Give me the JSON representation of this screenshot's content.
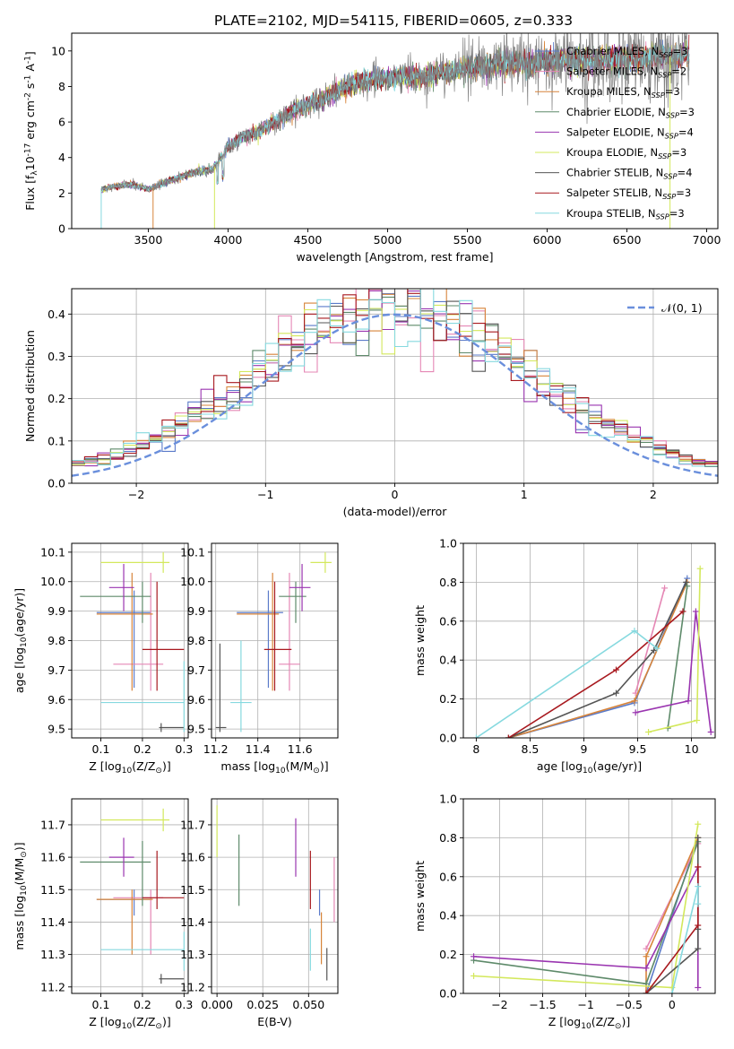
{
  "figure_title": "PLATE=2102, MJD=54115, FIBERID=0605, z=0.333",
  "colors": {
    "chabrier_miles": "#5b7bc9",
    "salpeter_miles": "#e587b5",
    "kroupa_miles": "#d7843a",
    "chabrier_elodie": "#5e8a6a",
    "salpeter_elodie": "#9a35b0",
    "kroupa_elodie": "#d3e85c",
    "chabrier_stelib": "#555555",
    "salpeter_stelib": "#a8191f",
    "kroupa_stelib": "#86d9df",
    "normal": "#6a8fdc",
    "data": "#808080"
  },
  "chart_data": [
    {
      "id": "spectrum",
      "type": "line",
      "xlabel": "wavelength [Angstrom, rest frame]",
      "ylabel": "Flux [f$_\\lambda$10$^{-17}$ erg cm$^{-2}$ s$^{-1}$ A$^{-1}$]",
      "xlim": [
        3020,
        7070
      ],
      "ylim": [
        0,
        11
      ],
      "xticks": [
        3500,
        4000,
        4500,
        5000,
        5500,
        6000,
        6500,
        7000
      ],
      "yticks": [
        0,
        2,
        4,
        6,
        8,
        10
      ],
      "legend_position": "top-right",
      "continuum": {
        "x": [
          3200,
          3300,
          3400,
          3500,
          3600,
          3700,
          3800,
          3900,
          4000,
          4100,
          4200,
          4300,
          4400,
          4500,
          4600,
          4700,
          4800,
          4900,
          5000,
          5100,
          5200,
          5300,
          5400,
          5500,
          5600,
          5700,
          5800,
          5900,
          6000,
          6100,
          6200,
          6300,
          6400,
          6500,
          6600,
          6700,
          6800,
          6900
        ],
        "y": [
          2.2,
          2.4,
          2.5,
          2.2,
          2.6,
          2.9,
          3.2,
          3.3,
          4.6,
          5.2,
          5.5,
          6.0,
          6.6,
          7.0,
          7.3,
          7.8,
          8.2,
          8.4,
          8.4,
          8.6,
          8.5,
          8.7,
          8.9,
          9.1,
          9.1,
          9.3,
          9.3,
          9.2,
          9.4,
          9.5,
          9.5,
          9.4,
          9.6,
          9.6,
          9.6,
          9.7,
          9.7,
          9.8
        ]
      },
      "series": [
        {
          "name": "Chabrier MILES, N$_{SSP}$=3",
          "color_key": "chabrier_miles"
        },
        {
          "name": "Salpeter MILES, N$_{SSP}$=2",
          "color_key": "salpeter_miles"
        },
        {
          "name": "Kroupa MILES, N$_{SSP}$=3",
          "color_key": "kroupa_miles"
        },
        {
          "name": "Chabrier ELODIE, N$_{SSP}$=3",
          "color_key": "chabrier_elodie"
        },
        {
          "name": "Salpeter ELODIE, N$_{SSP}$=4",
          "color_key": "salpeter_elodie"
        },
        {
          "name": "Kroupa ELODIE, N$_{SSP}$=3",
          "color_key": "kroupa_elodie"
        },
        {
          "name": "Chabrier STELIB, N$_{SSP}$=4",
          "color_key": "chabrier_stelib"
        },
        {
          "name": "Salpeter STELIB, N$_{SSP}$=3",
          "color_key": "salpeter_stelib"
        },
        {
          "name": "Kroupa STELIB, N$_{SSP}$=3",
          "color_key": "kroupa_stelib"
        }
      ]
    },
    {
      "id": "residuals",
      "type": "line",
      "xlabel": "(data-model)/error",
      "ylabel": "Normed distribution",
      "xlim": [
        -2.5,
        2.5
      ],
      "ylim": [
        0,
        0.46
      ],
      "xticks": [
        -2,
        -1,
        0,
        1,
        2
      ],
      "yticks": [
        0.0,
        0.1,
        0.2,
        0.3,
        0.4
      ],
      "grid": true,
      "legend_label": "$\\mathcal{N}(0, 1)$",
      "legend_position": "top-right",
      "bins": {
        "start": -2.5,
        "width": 0.1,
        "count": 50
      },
      "curve": "normal(0,1)"
    },
    {
      "id": "age_vs_Z",
      "type": "scatter",
      "xlabel": "Z [log$_{10}$(Z/Z$_\\odot$)]",
      "ylabel": "age  [log$_{10}$(age/yr)]",
      "xlim": [
        0.03,
        0.31
      ],
      "ylim": [
        9.47,
        10.13
      ],
      "xticks": [
        0.1,
        0.2,
        0.3
      ],
      "yticks": [
        9.5,
        9.6,
        9.7,
        9.8,
        9.9,
        10.0,
        10.1
      ],
      "grid": true,
      "points": [
        {
          "color_key": "chabrier_miles",
          "x": 0.18,
          "y": 9.895,
          "xerr": [
            0.09,
            0.22
          ],
          "yerr": [
            9.64,
            9.97
          ]
        },
        {
          "color_key": "salpeter_miles",
          "x": 0.22,
          "y": 9.72,
          "xerr": [
            0.13,
            0.25
          ],
          "yerr": [
            9.63,
            10.03
          ]
        },
        {
          "color_key": "kroupa_miles",
          "x": 0.175,
          "y": 9.89,
          "xerr": [
            0.09,
            0.225
          ],
          "yerr": [
            9.63,
            10.03
          ]
        },
        {
          "color_key": "chabrier_elodie",
          "x": 0.2,
          "y": 9.95,
          "xerr": [
            0.05,
            0.22
          ],
          "yerr": [
            9.86,
            10.0
          ]
        },
        {
          "color_key": "salpeter_elodie",
          "x": 0.155,
          "y": 9.98,
          "xerr": [
            0.12,
            0.18
          ],
          "yerr": [
            9.9,
            10.06
          ]
        },
        {
          "color_key": "kroupa_elodie",
          "x": 0.25,
          "y": 10.065,
          "xerr": [
            0.1,
            0.265
          ],
          "yerr": [
            10.03,
            10.1
          ]
        },
        {
          "color_key": "chabrier_stelib",
          "x": 0.245,
          "y": 9.505,
          "xerr": [
            0.24,
            0.3
          ],
          "yerr": [
            9.49,
            9.52
          ]
        },
        {
          "color_key": "salpeter_stelib",
          "x": 0.235,
          "y": 9.77,
          "xerr": [
            0.2,
            0.3
          ],
          "yerr": [
            9.63,
            10.0
          ]
        },
        {
          "color_key": "kroupa_stelib",
          "x": 0.3,
          "y": 9.59,
          "xerr": [
            0.1,
            0.3
          ],
          "yerr": [
            9.49,
            9.73
          ]
        }
      ]
    },
    {
      "id": "age_vs_mass",
      "type": "scatter",
      "xlabel": "mass [log$_{10}$(M/M$_\\odot$)]",
      "ylabel": "",
      "xlim": [
        11.18,
        11.78
      ],
      "ylim": [
        9.47,
        10.13
      ],
      "xticks": [
        11.2,
        11.4,
        11.6
      ],
      "yticks": [
        9.5,
        9.6,
        9.7,
        9.8,
        9.9,
        10.0,
        10.1
      ],
      "grid": true,
      "points": [
        {
          "color_key": "chabrier_miles",
          "x": 11.45,
          "y": 9.895,
          "xerr": [
            11.3,
            11.52
          ],
          "yerr": [
            9.64,
            9.97
          ]
        },
        {
          "color_key": "salpeter_miles",
          "x": 11.55,
          "y": 9.72,
          "xerr": [
            11.5,
            11.6
          ],
          "yerr": [
            9.63,
            10.03
          ]
        },
        {
          "color_key": "kroupa_miles",
          "x": 11.47,
          "y": 9.89,
          "xerr": [
            11.3,
            11.5
          ],
          "yerr": [
            9.63,
            10.03
          ]
        },
        {
          "color_key": "chabrier_elodie",
          "x": 11.58,
          "y": 9.95,
          "xerr": [
            11.5,
            11.63
          ],
          "yerr": [
            9.86,
            10.0
          ]
        },
        {
          "color_key": "salpeter_elodie",
          "x": 11.61,
          "y": 9.98,
          "xerr": [
            11.55,
            11.65
          ],
          "yerr": [
            9.9,
            10.06
          ]
        },
        {
          "color_key": "kroupa_elodie",
          "x": 11.72,
          "y": 10.065,
          "xerr": [
            11.65,
            11.75
          ],
          "yerr": [
            10.03,
            10.1
          ]
        },
        {
          "color_key": "chabrier_stelib",
          "x": 11.22,
          "y": 9.505,
          "xerr": [
            11.2,
            11.25
          ],
          "yerr": [
            9.49,
            9.79
          ]
        },
        {
          "color_key": "salpeter_stelib",
          "x": 11.48,
          "y": 9.77,
          "xerr": [
            11.43,
            11.56
          ],
          "yerr": [
            9.63,
            10.0
          ]
        },
        {
          "color_key": "kroupa_stelib",
          "x": 11.32,
          "y": 9.59,
          "xerr": [
            11.27,
            11.37
          ],
          "yerr": [
            9.49,
            9.8
          ]
        }
      ]
    },
    {
      "id": "weight_vs_age",
      "type": "line",
      "xlabel": "age  [log$_{10}$(age/yr)]",
      "ylabel": "mass weight",
      "xlim": [
        7.88,
        10.22
      ],
      "ylim": [
        0,
        1
      ],
      "xticks": [
        8.0,
        8.5,
        9.0,
        9.5,
        10.0
      ],
      "yticks": [
        0.0,
        0.2,
        0.4,
        0.6,
        0.8,
        1.0
      ],
      "grid": true,
      "series": [
        {
          "color_key": "chabrier_miles",
          "x": [
            8.3,
            9.47,
            9.96
          ],
          "y": [
            0.0,
            0.18,
            0.82
          ]
        },
        {
          "color_key": "salpeter_miles",
          "x": [
            9.48,
            9.75
          ],
          "y": [
            0.23,
            0.77
          ]
        },
        {
          "color_key": "kroupa_miles",
          "x": [
            8.3,
            9.47,
            9.96
          ],
          "y": [
            0.0,
            0.19,
            0.8
          ]
        },
        {
          "color_key": "chabrier_elodie",
          "x": [
            9.78,
            9.96
          ],
          "y": [
            0.05,
            0.78
          ]
        },
        {
          "color_key": "salpeter_elodie",
          "x": [
            9.48,
            9.97,
            10.04,
            10.18
          ],
          "y": [
            0.13,
            0.19,
            0.65,
            0.03
          ]
        },
        {
          "color_key": "kroupa_elodie",
          "x": [
            9.6,
            10.05,
            10.08
          ],
          "y": [
            0.03,
            0.09,
            0.87
          ]
        },
        {
          "color_key": "chabrier_stelib",
          "x": [
            8.3,
            9.3,
            9.65,
            9.95
          ],
          "y": [
            0.0,
            0.23,
            0.45,
            0.8
          ]
        },
        {
          "color_key": "salpeter_stelib",
          "x": [
            8.3,
            9.3,
            9.92
          ],
          "y": [
            0.0,
            0.35,
            0.65
          ]
        },
        {
          "color_key": "kroupa_stelib",
          "x": [
            8.0,
            9.47,
            9.68
          ],
          "y": [
            0.0,
            0.55,
            0.46
          ]
        }
      ]
    },
    {
      "id": "mass_vs_Z",
      "type": "scatter",
      "xlabel": "Z [log$_{10}$(Z/Z$_\\odot$)]",
      "ylabel": "mass [log$_{10}$(M/M$_\\odot$)]",
      "xlim": [
        0.03,
        0.31
      ],
      "ylim": [
        11.18,
        11.78
      ],
      "xticks": [
        0.1,
        0.2,
        0.3
      ],
      "yticks": [
        11.2,
        11.3,
        11.4,
        11.5,
        11.6,
        11.7
      ],
      "grid": true,
      "points": [
        {
          "color_key": "chabrier_miles",
          "x": 0.18,
          "y": 11.47,
          "xerr": [
            0.09,
            0.22
          ],
          "yerr": [
            11.42,
            11.5
          ]
        },
        {
          "color_key": "salpeter_miles",
          "x": 0.22,
          "y": 11.475,
          "xerr": [
            0.13,
            0.25
          ],
          "yerr": [
            11.3,
            11.5
          ]
        },
        {
          "color_key": "kroupa_miles",
          "x": 0.175,
          "y": 11.47,
          "xerr": [
            0.09,
            0.225
          ],
          "yerr": [
            11.3,
            11.5
          ]
        },
        {
          "color_key": "chabrier_elodie",
          "x": 0.2,
          "y": 11.585,
          "xerr": [
            0.05,
            0.22
          ],
          "yerr": [
            11.45,
            11.65
          ]
        },
        {
          "color_key": "salpeter_elodie",
          "x": 0.155,
          "y": 11.6,
          "xerr": [
            0.12,
            0.18
          ],
          "yerr": [
            11.54,
            11.66
          ]
        },
        {
          "color_key": "kroupa_elodie",
          "x": 0.25,
          "y": 11.715,
          "xerr": [
            0.1,
            0.265
          ],
          "yerr": [
            11.68,
            11.75
          ]
        },
        {
          "color_key": "chabrier_stelib",
          "x": 0.245,
          "y": 11.225,
          "xerr": [
            0.24,
            0.3
          ],
          "yerr": [
            11.21,
            11.24
          ]
        },
        {
          "color_key": "salpeter_stelib",
          "x": 0.235,
          "y": 11.475,
          "xerr": [
            0.2,
            0.3
          ],
          "yerr": [
            11.44,
            11.62
          ]
        },
        {
          "color_key": "kroupa_stelib",
          "x": 0.3,
          "y": 11.315,
          "xerr": [
            0.1,
            0.3
          ],
          "yerr": [
            11.25,
            11.37
          ]
        }
      ]
    },
    {
      "id": "mass_vs_ebv",
      "type": "scatter",
      "xlabel": "E(B-V)",
      "ylabel": "",
      "xlim": [
        -0.003,
        0.066
      ],
      "ylim": [
        11.18,
        11.78
      ],
      "xticks": [
        0.0,
        0.025,
        0.05
      ],
      "xticklabels": [
        "0.000",
        "0.025",
        "0.050"
      ],
      "yticks": [
        11.2,
        11.3,
        11.4,
        11.5,
        11.6,
        11.7
      ],
      "grid": true,
      "points": [
        {
          "color_key": "chabrier_miles",
          "x": 0.056,
          "y": 11.47,
          "xerr": [
            0.056,
            0.056
          ],
          "yerr": [
            11.42,
            11.5
          ]
        },
        {
          "color_key": "salpeter_miles",
          "x": 0.064,
          "y": 11.5,
          "xerr": [
            0.064,
            0.064
          ],
          "yerr": [
            11.4,
            11.6
          ]
        },
        {
          "color_key": "kroupa_miles",
          "x": 0.057,
          "y": 11.37,
          "xerr": [
            0.057,
            0.057
          ],
          "yerr": [
            11.27,
            11.43
          ]
        },
        {
          "color_key": "chabrier_elodie",
          "x": 0.012,
          "y": 11.56,
          "xerr": [
            0.012,
            0.012
          ],
          "yerr": [
            11.45,
            11.67
          ]
        },
        {
          "color_key": "salpeter_elodie",
          "x": 0.043,
          "y": 11.62,
          "xerr": [
            0.043,
            0.043
          ],
          "yerr": [
            11.54,
            11.72
          ]
        },
        {
          "color_key": "kroupa_elodie",
          "x": 0.0,
          "y": 11.68,
          "xerr": [
            0.0,
            0.0
          ],
          "yerr": [
            11.6,
            11.76
          ]
        },
        {
          "color_key": "chabrier_stelib",
          "x": 0.06,
          "y": 11.27,
          "xerr": [
            0.06,
            0.06
          ],
          "yerr": [
            11.22,
            11.32
          ]
        },
        {
          "color_key": "salpeter_stelib",
          "x": 0.051,
          "y": 11.53,
          "xerr": [
            0.051,
            0.051
          ],
          "yerr": [
            11.44,
            11.62
          ]
        },
        {
          "color_key": "kroupa_stelib",
          "x": 0.051,
          "y": 11.32,
          "xerr": [
            0.051,
            0.051
          ],
          "yerr": [
            11.25,
            11.38
          ]
        }
      ]
    },
    {
      "id": "weight_vs_Z",
      "type": "line",
      "xlabel": "Z [log$_{10}$(Z/Z$_\\odot$)]",
      "ylabel": "mass weight",
      "xlim": [
        -2.42,
        0.5
      ],
      "ylim": [
        0,
        1
      ],
      "xticks": [
        -2.0,
        -1.5,
        -1.0,
        -0.5,
        0.0
      ],
      "yticks": [
        0.0,
        0.2,
        0.4,
        0.6,
        0.8,
        1.0
      ],
      "grid": true,
      "series": [
        {
          "color_key": "chabrier_miles",
          "x": [
            -0.3,
            0.3
          ],
          "y": [
            0.0,
            0.8
          ]
        },
        {
          "color_key": "salpeter_miles",
          "x": [
            -0.3,
            0.3
          ],
          "y": [
            0.23,
            0.77
          ]
        },
        {
          "color_key": "kroupa_miles",
          "x": [
            -0.3,
            -0.3,
            0.3
          ],
          "y": [
            0.0,
            0.19,
            0.8
          ]
        },
        {
          "color_key": "chabrier_elodie",
          "x": [
            -2.3,
            -0.3,
            0.3
          ],
          "y": [
            0.17,
            0.05,
            0.78
          ]
        },
        {
          "color_key": "salpeter_elodie",
          "x": [
            -2.3,
            -0.3,
            0.3,
            0.3
          ],
          "y": [
            0.19,
            0.13,
            0.65,
            0.03
          ]
        },
        {
          "color_key": "kroupa_elodie",
          "x": [
            -2.3,
            0.0,
            0.3
          ],
          "y": [
            0.09,
            0.03,
            0.87
          ]
        },
        {
          "color_key": "chabrier_stelib",
          "x": [
            -0.3,
            0.3,
            0.3,
            0.3
          ],
          "y": [
            0.0,
            0.23,
            0.33,
            0.8
          ]
        },
        {
          "color_key": "salpeter_stelib",
          "x": [
            -0.3,
            0.3,
            0.3
          ],
          "y": [
            0.0,
            0.35,
            0.65
          ]
        },
        {
          "color_key": "kroupa_stelib",
          "x": [
            0.0,
            0.3,
            0.3
          ],
          "y": [
            0.0,
            0.55,
            0.46
          ]
        }
      ]
    }
  ]
}
